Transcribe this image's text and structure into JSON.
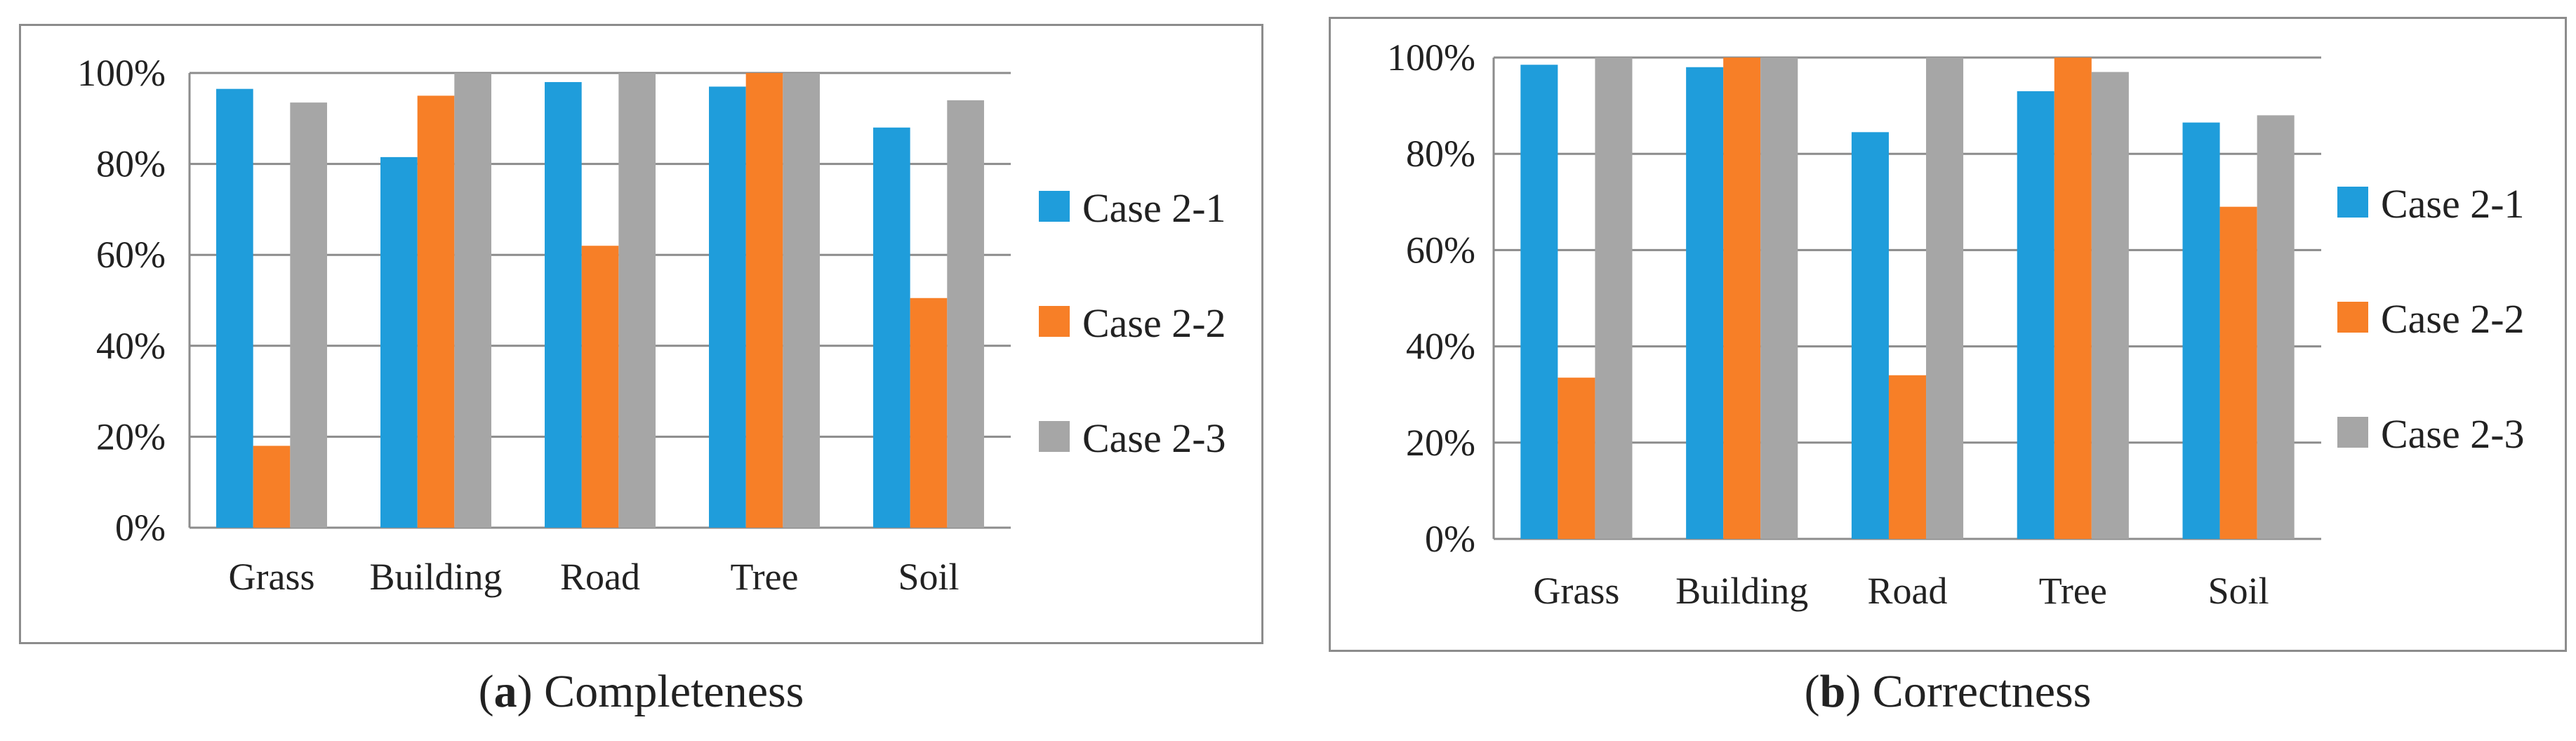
{
  "charts": [
    {
      "id": "a",
      "caption_letter": "a",
      "caption_text": " Completeness",
      "caption_open": "(",
      "caption_close": ")"
    },
    {
      "id": "b",
      "caption_letter": "b",
      "caption_text": " Correctness",
      "caption_open": "(",
      "caption_close": ")"
    }
  ],
  "colors": {
    "Case 2-1": "#1f9ddb",
    "Case 2-2": "#f77f27",
    "Case 2-3": "#a6a6a6",
    "grid": "#8c8c8c"
  },
  "chart_data": [
    {
      "type": "bar",
      "title": "(a) Completeness",
      "xlabel": "",
      "ylabel": "",
      "categories": [
        "Grass",
        "Building",
        "Road",
        "Tree",
        "Soil"
      ],
      "series": [
        {
          "name": "Case 2-1",
          "values": [
            96.5,
            81.5,
            98,
            97,
            88
          ]
        },
        {
          "name": "Case 2-2",
          "values": [
            18,
            95,
            62,
            100,
            50.5
          ]
        },
        {
          "name": "Case 2-3",
          "values": [
            93.5,
            100,
            100,
            100,
            94
          ]
        }
      ],
      "ylim": [
        0,
        100
      ],
      "yticks": [
        "0%",
        "20%",
        "40%",
        "60%",
        "80%",
        "100%"
      ],
      "grid": true,
      "legend": "right"
    },
    {
      "type": "bar",
      "title": "(b) Correctness",
      "xlabel": "",
      "ylabel": "",
      "categories": [
        "Grass",
        "Building",
        "Road",
        "Tree",
        "Soil"
      ],
      "series": [
        {
          "name": "Case 2-1",
          "values": [
            98.5,
            98,
            84.5,
            93,
            86.5
          ]
        },
        {
          "name": "Case 2-2",
          "values": [
            33.5,
            100,
            34,
            100,
            69
          ]
        },
        {
          "name": "Case 2-3",
          "values": [
            100,
            100,
            100,
            97,
            88
          ]
        }
      ],
      "ylim": [
        0,
        100
      ],
      "yticks": [
        "0%",
        "20%",
        "40%",
        "60%",
        "80%",
        "100%"
      ],
      "grid": true,
      "legend": "right"
    }
  ]
}
